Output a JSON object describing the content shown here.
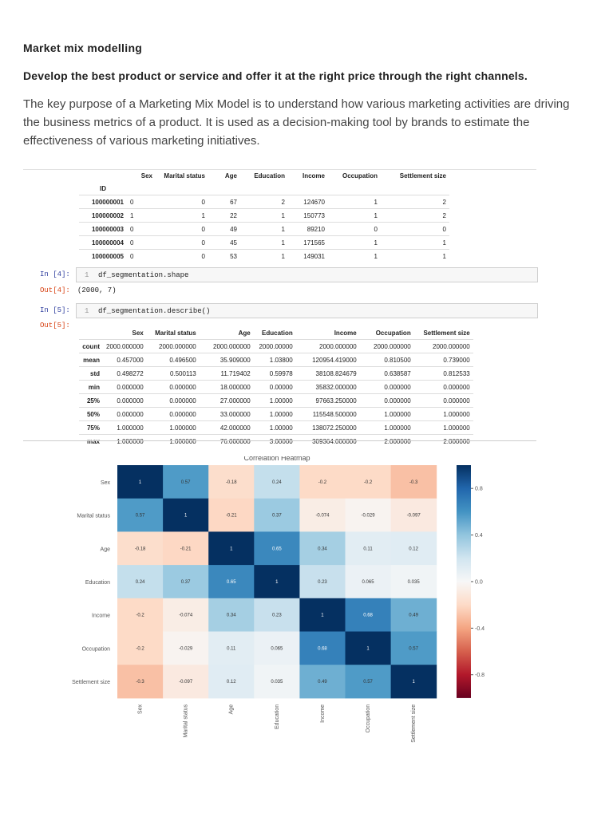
{
  "header": {
    "title": "Market mix modelling",
    "subtitle": "Develop the best product or service and offer it at the right price through the right channels."
  },
  "paragraph": "The key purpose of a Marketing Mix Model is to understand how various marketing activities are driving the business metrics of a product. It is used as a decision-making tool by brands to estimate the effectiveness of various marketing initiatives.",
  "table1": {
    "columns": [
      "Sex",
      "Marital status",
      "Age",
      "Education",
      "Income",
      "Occupation",
      "Settlement size"
    ],
    "index_name": "ID",
    "rows": [
      [
        "100000001",
        "0",
        "0",
        "67",
        "2",
        "124670",
        "1",
        "2"
      ],
      [
        "100000002",
        "1",
        "1",
        "22",
        "1",
        "150773",
        "1",
        "2"
      ],
      [
        "100000003",
        "0",
        "0",
        "49",
        "1",
        "89210",
        "0",
        "0"
      ],
      [
        "100000004",
        "0",
        "0",
        "45",
        "1",
        "171565",
        "1",
        "1"
      ],
      [
        "100000005",
        "0",
        "0",
        "53",
        "1",
        "149031",
        "1",
        "1"
      ]
    ]
  },
  "cell4": {
    "prompt": "In [4]:",
    "line_no": "1",
    "code": "df_segmentation.shape",
    "out_prompt": "Out[4]:",
    "output": "(2000, 7)"
  },
  "cell5": {
    "prompt": "In [5]:",
    "line_no": "1",
    "code": "df_segmentation.describe()",
    "out_prompt": "Out[5]:"
  },
  "table2": {
    "columns": [
      "Sex",
      "Marital status",
      "Age",
      "Education",
      "Income",
      "Occupation",
      "Settlement size"
    ],
    "rows": [
      [
        "count",
        "2000.000000",
        "2000.000000",
        "2000.000000",
        "2000.00000",
        "2000.000000",
        "2000.000000",
        "2000.000000"
      ],
      [
        "mean",
        "0.457000",
        "0.496500",
        "35.909000",
        "1.03800",
        "120954.419000",
        "0.810500",
        "0.739000"
      ],
      [
        "std",
        "0.498272",
        "0.500113",
        "11.719402",
        "0.59978",
        "38108.824679",
        "0.638587",
        "0.812533"
      ],
      [
        "min",
        "0.000000",
        "0.000000",
        "18.000000",
        "0.00000",
        "35832.000000",
        "0.000000",
        "0.000000"
      ],
      [
        "25%",
        "0.000000",
        "0.000000",
        "27.000000",
        "1.00000",
        "97663.250000",
        "0.000000",
        "0.000000"
      ],
      [
        "50%",
        "0.000000",
        "0.000000",
        "33.000000",
        "1.00000",
        "115548.500000",
        "1.000000",
        "1.000000"
      ],
      [
        "75%",
        "1.000000",
        "1.000000",
        "42.000000",
        "1.00000",
        "138072.250000",
        "1.000000",
        "1.000000"
      ],
      [
        "max",
        "1.000000",
        "1.000000",
        "76.000000",
        "3.00000",
        "309364.000000",
        "2.000000",
        "2.000000"
      ]
    ]
  },
  "heatmap": {
    "title": "Correlation Heatmap",
    "labels": [
      "Sex",
      "Marital status",
      "Age",
      "Education",
      "Income",
      "Occupation",
      "Settlement size"
    ],
    "values": [
      [
        1,
        0.57,
        -0.18,
        0.24,
        -0.2,
        -0.2,
        -0.3
      ],
      [
        0.57,
        1,
        -0.21,
        0.37,
        -0.074,
        -0.029,
        -0.097
      ],
      [
        -0.18,
        -0.21,
        1,
        0.65,
        0.34,
        0.11,
        0.12
      ],
      [
        0.24,
        0.37,
        0.65,
        1,
        0.23,
        0.065,
        0.035
      ],
      [
        -0.2,
        -0.074,
        0.34,
        0.23,
        1,
        0.68,
        0.49
      ],
      [
        -0.2,
        -0.029,
        0.11,
        0.065,
        0.68,
        1,
        0.57
      ],
      [
        -0.3,
        -0.097,
        0.12,
        0.035,
        0.49,
        0.57,
        1
      ]
    ],
    "clim": [
      -1,
      1
    ],
    "cticks": [
      0.8,
      0.4,
      {
        "value": 0,
        "label": "0.0"
      },
      -0.4,
      -0.8
    ]
  }
}
